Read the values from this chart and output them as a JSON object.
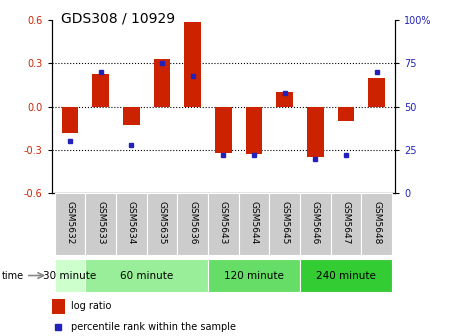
{
  "title": "GDS308 / 10929",
  "samples": [
    "GSM5632",
    "GSM5633",
    "GSM5634",
    "GSM5635",
    "GSM5636",
    "GSM5643",
    "GSM5644",
    "GSM5645",
    "GSM5646",
    "GSM5647",
    "GSM5648"
  ],
  "log_ratio": [
    -0.18,
    0.23,
    -0.13,
    0.33,
    0.59,
    -0.32,
    -0.33,
    0.1,
    -0.35,
    -0.1,
    0.2
  ],
  "percentile": [
    30,
    70,
    28,
    75,
    68,
    22,
    22,
    58,
    20,
    22,
    70
  ],
  "groups": [
    {
      "label": "30 minute",
      "indices": [
        0
      ],
      "color": "#ccffcc"
    },
    {
      "label": "60 minute",
      "indices": [
        1,
        2,
        3,
        4
      ],
      "color": "#99ee99"
    },
    {
      "label": "120 minute",
      "indices": [
        5,
        6,
        7
      ],
      "color": "#66dd66"
    },
    {
      "label": "240 minute",
      "indices": [
        8,
        9,
        10
      ],
      "color": "#33cc33"
    }
  ],
  "bar_color": "#cc2200",
  "dot_color": "#2222bb",
  "ylim_left": [
    -0.6,
    0.6
  ],
  "ylim_right": [
    0,
    100
  ],
  "yticks_left": [
    -0.6,
    -0.3,
    0.0,
    0.3,
    0.6
  ],
  "yticks_right": [
    0,
    25,
    50,
    75,
    100
  ],
  "hlines": [
    -0.3,
    0.0,
    0.3
  ],
  "background_color": "#ffffff",
  "title_fontsize": 10,
  "tick_fontsize": 7,
  "sample_fontsize": 6.5,
  "group_label_fontsize": 7.5,
  "legend_fontsize": 7
}
